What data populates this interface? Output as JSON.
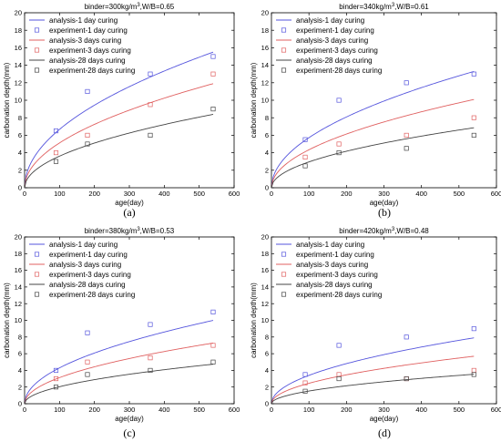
{
  "styles": {
    "colors": {
      "1 day": "#5555dd",
      "3 days": "#e06060",
      "28 days": "#444444"
    }
  },
  "chart_data": [
    {
      "type": "line",
      "panel_label": "(a)",
      "title_parts": [
        "binder=300kg/m",
        "3",
        ",W/B=0.65"
      ],
      "xlabel": "age(day)",
      "ylabel": "carbonation depth(mm)",
      "xlim": [
        0,
        600
      ],
      "ylim": [
        0,
        20
      ],
      "xticks": [
        0,
        100,
        200,
        300,
        400,
        500,
        600
      ],
      "yticks": [
        0,
        2,
        4,
        6,
        8,
        10,
        12,
        14,
        16,
        18,
        20
      ],
      "legend_position": "top-left",
      "series": [
        {
          "name": "analysis-1 day curing",
          "kind": "line",
          "group": "1 day",
          "k": 0.667
        },
        {
          "name": "experiment-1 day curing",
          "kind": "marker",
          "group": "1 day",
          "x": [
            90,
            180,
            360,
            540
          ],
          "y": [
            6.5,
            11.0,
            13.0,
            15.0
          ]
        },
        {
          "name": "analysis-3 days curing",
          "kind": "line",
          "group": "3 days",
          "k": 0.512
        },
        {
          "name": "experiment-3 days curing",
          "kind": "marker",
          "group": "3 days",
          "x": [
            90,
            180,
            360,
            540
          ],
          "y": [
            4.0,
            6.0,
            9.5,
            13.0
          ]
        },
        {
          "name": "analysis-28 days curing",
          "kind": "line",
          "group": "28 days",
          "k": 0.361
        },
        {
          "name": "experiment-28 days curing",
          "kind": "marker",
          "group": "28 days",
          "x": [
            90,
            180,
            360,
            540
          ],
          "y": [
            3.0,
            5.0,
            6.0,
            9.0
          ]
        }
      ]
    },
    {
      "type": "line",
      "panel_label": "(b)",
      "title_parts": [
        "binder=340kg/m",
        "3",
        ",W/B=0.61"
      ],
      "xlabel": "age(day)",
      "ylabel": "carbonation depth(mm)",
      "xlim": [
        0,
        600
      ],
      "ylim": [
        0,
        20
      ],
      "xticks": [
        0,
        100,
        200,
        300,
        400,
        500,
        600
      ],
      "yticks": [
        0,
        2,
        4,
        6,
        8,
        10,
        12,
        14,
        16,
        18,
        20
      ],
      "legend_position": "top-left",
      "series": [
        {
          "name": "analysis-1 day curing",
          "kind": "line",
          "group": "1 day",
          "k": 0.572
        },
        {
          "name": "experiment-1 day curing",
          "kind": "marker",
          "group": "1 day",
          "x": [
            90,
            180,
            360,
            540
          ],
          "y": [
            5.5,
            10.0,
            12.0,
            13.0
          ]
        },
        {
          "name": "analysis-3 days curing",
          "kind": "line",
          "group": "3 days",
          "k": 0.434
        },
        {
          "name": "experiment-3 days curing",
          "kind": "marker",
          "group": "3 days",
          "x": [
            90,
            180,
            360,
            540
          ],
          "y": [
            3.5,
            5.0,
            6.0,
            8.0
          ]
        },
        {
          "name": "analysis-28 days curing",
          "kind": "line",
          "group": "28 days",
          "k": 0.295
        },
        {
          "name": "experiment-28 days curing",
          "kind": "marker",
          "group": "28 days",
          "x": [
            90,
            180,
            360,
            540
          ],
          "y": [
            2.5,
            4.0,
            4.5,
            6.0
          ]
        }
      ]
    },
    {
      "type": "line",
      "panel_label": "(c)",
      "title_parts": [
        "binder=380kg/m",
        "3",
        ",W/B=0.53"
      ],
      "xlabel": "age(day)",
      "ylabel": "carbonation depth(mm)",
      "xlim": [
        0,
        600
      ],
      "ylim": [
        0,
        20
      ],
      "xticks": [
        0,
        100,
        200,
        300,
        400,
        500,
        600
      ],
      "yticks": [
        0,
        2,
        4,
        6,
        8,
        10,
        12,
        14,
        16,
        18,
        20
      ],
      "legend_position": "top-left",
      "series": [
        {
          "name": "analysis-1 day curing",
          "kind": "line",
          "group": "1 day",
          "k": 0.43
        },
        {
          "name": "experiment-1 day curing",
          "kind": "marker",
          "group": "1 day",
          "x": [
            90,
            180,
            360,
            540
          ],
          "y": [
            4.0,
            8.5,
            9.5,
            11.0
          ]
        },
        {
          "name": "analysis-3 days curing",
          "kind": "line",
          "group": "3 days",
          "k": 0.313
        },
        {
          "name": "experiment-3 days curing",
          "kind": "marker",
          "group": "3 days",
          "x": [
            90,
            180,
            360,
            540
          ],
          "y": [
            3.0,
            5.0,
            5.5,
            7.0
          ]
        },
        {
          "name": "analysis-28 days curing",
          "kind": "line",
          "group": "28 days",
          "k": 0.204
        },
        {
          "name": "experiment-28 days curing",
          "kind": "marker",
          "group": "28 days",
          "x": [
            90,
            180,
            360,
            540
          ],
          "y": [
            2.0,
            3.5,
            4.0,
            5.0
          ]
        }
      ]
    },
    {
      "type": "line",
      "panel_label": "(d)",
      "title_parts": [
        "binder=420kg/m",
        "3",
        ",W/B=0.48"
      ],
      "xlabel": "age(day)",
      "ylabel": "carbonation depth(mm)",
      "xlim": [
        0,
        600
      ],
      "ylim": [
        0,
        20
      ],
      "xticks": [
        0,
        100,
        200,
        300,
        400,
        500,
        600
      ],
      "yticks": [
        0,
        2,
        4,
        6,
        8,
        10,
        12,
        14,
        16,
        18,
        20
      ],
      "legend_position": "top-left",
      "series": [
        {
          "name": "analysis-1 day curing",
          "kind": "line",
          "group": "1 day",
          "k": 0.34
        },
        {
          "name": "experiment-1 day curing",
          "kind": "marker",
          "group": "1 day",
          "x": [
            90,
            180,
            360,
            540
          ],
          "y": [
            3.5,
            7.0,
            8.0,
            9.0
          ]
        },
        {
          "name": "analysis-3 days curing",
          "kind": "line",
          "group": "3 days",
          "k": 0.245
        },
        {
          "name": "experiment-3 days curing",
          "kind": "marker",
          "group": "3 days",
          "x": [
            90,
            180,
            360,
            540
          ],
          "y": [
            2.5,
            3.5,
            3.0,
            4.0
          ]
        },
        {
          "name": "analysis-28 days curing",
          "kind": "line",
          "group": "28 days",
          "k": 0.152
        },
        {
          "name": "experiment-28 days curing",
          "kind": "marker",
          "group": "28 days",
          "x": [
            90,
            180,
            360,
            540
          ],
          "y": [
            1.5,
            3.0,
            3.0,
            3.5
          ]
        }
      ]
    }
  ]
}
